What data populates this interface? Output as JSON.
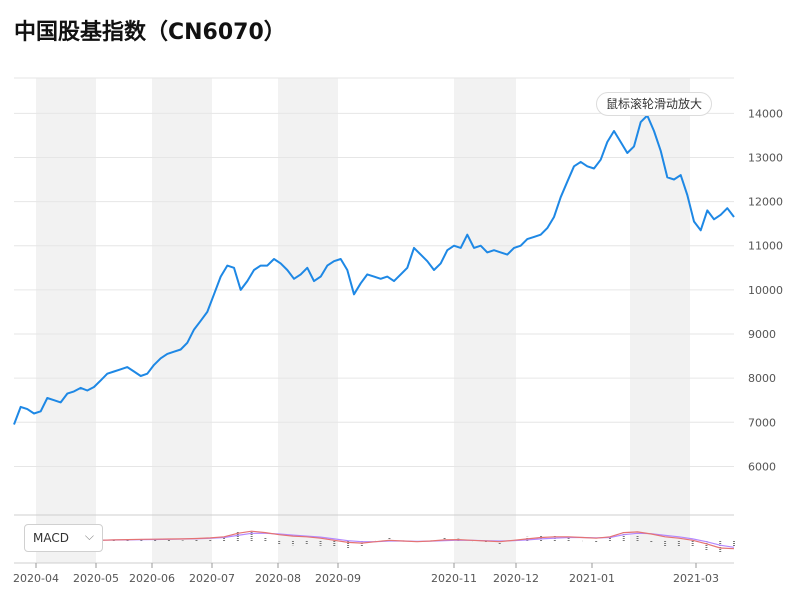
{
  "title": "中国股基指数（CN6070）",
  "controls": {
    "zoom_hint": "鼠标滚轮滑动放大",
    "indicator": "MACD",
    "indicator_icon": "chevron-down-icon"
  },
  "colors": {
    "price_line": "#1e88e5",
    "band": "#f2f2f2",
    "grid": "#e6e6e6",
    "macd_dif": "#e57373",
    "macd_dea": "#b388ff",
    "macd_hist": "#777777"
  },
  "chart_data": {
    "type": "line",
    "title": "中国股基指数（CN6070）",
    "xlabel": "",
    "ylabel": "",
    "ylim": [
      4900,
      14800
    ],
    "y_ticks": [
      6000,
      7000,
      8000,
      9000,
      10000,
      11000,
      12000,
      13000,
      14000
    ],
    "x_ticks": [
      "2020-04",
      "2020-05",
      "2020-06",
      "2020-07",
      "2020-08",
      "2020-09",
      "2020-11",
      "2020-12",
      "2021-01",
      "2021-03"
    ],
    "grid": true,
    "series": [
      {
        "values": [
          6950,
          7350,
          7300,
          7200,
          7250,
          7550,
          7500,
          7450,
          7650,
          7700,
          7780,
          7720,
          7800,
          7950,
          8100,
          8150,
          8200,
          8250,
          8150,
          8050,
          8100,
          8300,
          8450,
          8550,
          8600,
          8650,
          8800,
          9100,
          9300,
          9500,
          9900,
          10300,
          10550,
          10500,
          10000,
          10200,
          10450,
          10550,
          10550,
          10700,
          10600,
          10450,
          10250,
          10350,
          10500,
          10200,
          10300,
          10550,
          10650,
          10700,
          10450,
          9900,
          10150,
          10350,
          10300,
          10250,
          10300,
          10200,
          10350,
          10500,
          10950,
          10800,
          10650,
          10450,
          10600,
          10900,
          11000,
          10950,
          11250,
          10950,
          11000,
          10850,
          10900,
          10850,
          10800,
          10950,
          11000,
          11150,
          11200,
          11250,
          11400,
          11650,
          12100,
          12450,
          12800,
          12900,
          12800,
          12750,
          12950,
          13350,
          13600,
          13350,
          13100,
          13250,
          13800,
          13950,
          13600,
          13150,
          12550,
          12500,
          12600,
          12150,
          11550,
          11350,
          11800,
          11600,
          11700,
          11850,
          11650
        ]
      }
    ],
    "macd": {
      "dif": [
        0.05,
        0.08,
        0.1,
        0.12,
        0.13,
        0.14,
        0.15,
        0.18,
        0.22,
        0.3,
        0.55,
        0.7,
        0.6,
        0.45,
        0.35,
        0.3,
        0.2,
        0.05,
        -0.1,
        -0.15,
        -0.05,
        0.05,
        0.0,
        -0.05,
        0.0,
        0.08,
        0.1,
        0.05,
        0.0,
        -0.05,
        0.05,
        0.15,
        0.25,
        0.3,
        0.3,
        0.25,
        0.2,
        0.3,
        0.6,
        0.65,
        0.5,
        0.3,
        0.2,
        0.05,
        -0.2,
        -0.5,
        -0.55
      ],
      "dea": [
        0.06,
        0.07,
        0.08,
        0.1,
        0.11,
        0.12,
        0.14,
        0.16,
        0.19,
        0.25,
        0.4,
        0.55,
        0.55,
        0.5,
        0.42,
        0.35,
        0.28,
        0.15,
        0.02,
        -0.05,
        -0.05,
        0.0,
        0.0,
        -0.02,
        -0.01,
        0.03,
        0.06,
        0.05,
        0.02,
        0.0,
        0.02,
        0.08,
        0.15,
        0.2,
        0.25,
        0.25,
        0.22,
        0.25,
        0.45,
        0.55,
        0.52,
        0.4,
        0.3,
        0.15,
        -0.05,
        -0.3,
        -0.45
      ]
    }
  }
}
